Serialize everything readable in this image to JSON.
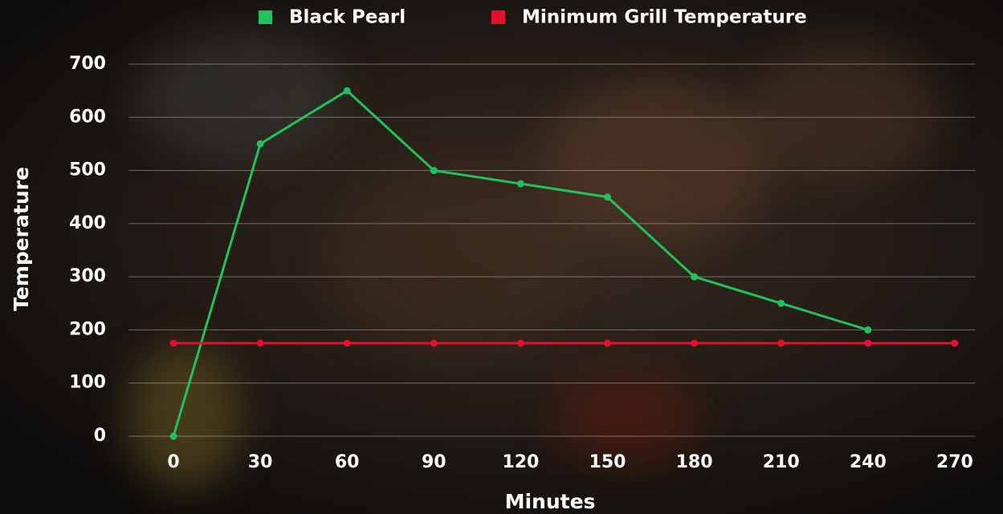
{
  "chart_data": {
    "type": "line",
    "x_label": "Minutes",
    "y_label": "Temperature",
    "categories": [
      "0",
      "30",
      "60",
      "90",
      "120",
      "150",
      "180",
      "210",
      "240",
      "270"
    ],
    "series": [
      {
        "name": "Black Pearl",
        "color": "#21c15e",
        "values": [
          0,
          550,
          650,
          500,
          475,
          450,
          300,
          250,
          200,
          null
        ]
      },
      {
        "name": "Minimum Grill Temperature",
        "color": "#e3102f",
        "values": [
          175,
          175,
          175,
          175,
          175,
          175,
          175,
          175,
          175,
          175
        ]
      }
    ],
    "ylim": [
      0,
      700
    ],
    "yticks": [
      0,
      100,
      200,
      300,
      400,
      500,
      600,
      700
    ],
    "grid": true,
    "legend": "top",
    "x_label_color": "#2f8ff2",
    "y_label_color": "#f26a3c"
  }
}
